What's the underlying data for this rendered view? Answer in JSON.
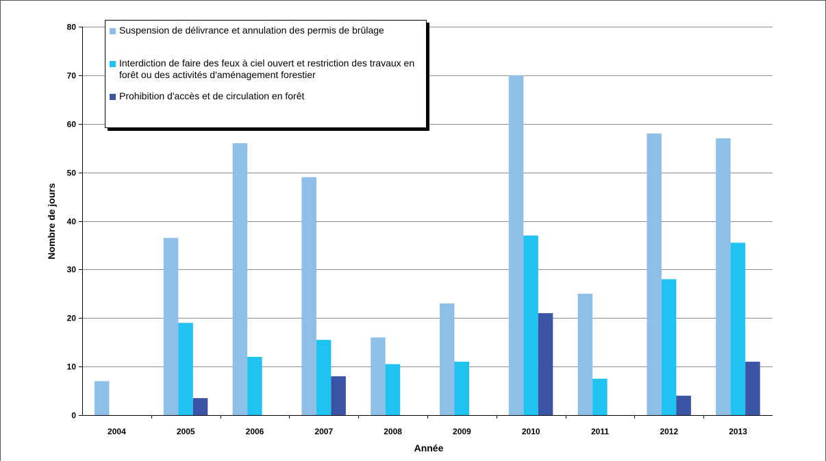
{
  "chart_data": {
    "type": "bar",
    "title": "",
    "xlabel": "Année",
    "ylabel": "Nombre de jours",
    "categories": [
      "2004",
      "2005",
      "2006",
      "2007",
      "2008",
      "2009",
      "2010",
      "2011",
      "2012",
      "2013"
    ],
    "ylim": [
      0,
      80
    ],
    "yticks": [
      0,
      10,
      20,
      30,
      40,
      50,
      60,
      70,
      80
    ],
    "grid": true,
    "legend_position": "top-left",
    "series": [
      {
        "name": "Suspension de délivrance et annulation des permis de brûlage",
        "color": "#8fbfe6",
        "values": [
          7,
          36.5,
          56,
          49,
          16,
          23,
          70,
          25,
          58,
          57
        ]
      },
      {
        "name": "Interdiction de faire des feux à ciel ouvert et restriction des travaux en forêt ou des activités d'aménagement forestier",
        "color": "#1fc3f0",
        "values": [
          0,
          19,
          12,
          15.5,
          10.5,
          11,
          37,
          7.5,
          28,
          35.5
        ]
      },
      {
        "name": "Prohibition d'accès et de circulation en forêt",
        "color": "#3b55a4",
        "values": [
          0,
          3.5,
          0,
          8,
          0,
          0,
          21,
          0,
          4,
          11
        ]
      }
    ]
  }
}
